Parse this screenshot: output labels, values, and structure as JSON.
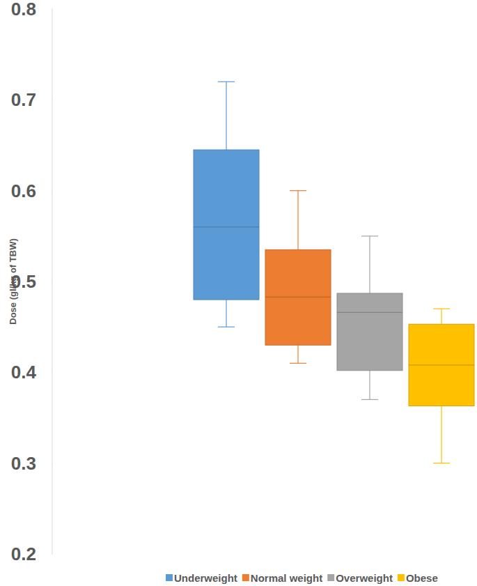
{
  "chart_data": {
    "type": "box",
    "y_label": "Dose (gI/kg of TBW)",
    "categories": [
      "Underweight",
      "Normal weight",
      "Overweight",
      "Obese"
    ],
    "colors": [
      "#5B9BD5",
      "#ED7D31",
      "#A5A5A5",
      "#FFC000"
    ],
    "min": [
      0.45,
      0.41,
      0.37,
      0.3
    ],
    "q1": [
      0.48,
      0.43,
      0.402,
      0.363
    ],
    "median": [
      0.56,
      0.483,
      0.466,
      0.408
    ],
    "q3": [
      0.645,
      0.535,
      0.487,
      0.453
    ],
    "max": [
      0.72,
      0.6,
      0.55,
      0.47
    ],
    "ylim": [
      0.2,
      0.8
    ],
    "yticks": [
      0.2,
      0.3,
      0.4,
      0.5,
      0.6,
      0.7,
      0.8
    ],
    "grid": false,
    "legend": "bottom"
  }
}
